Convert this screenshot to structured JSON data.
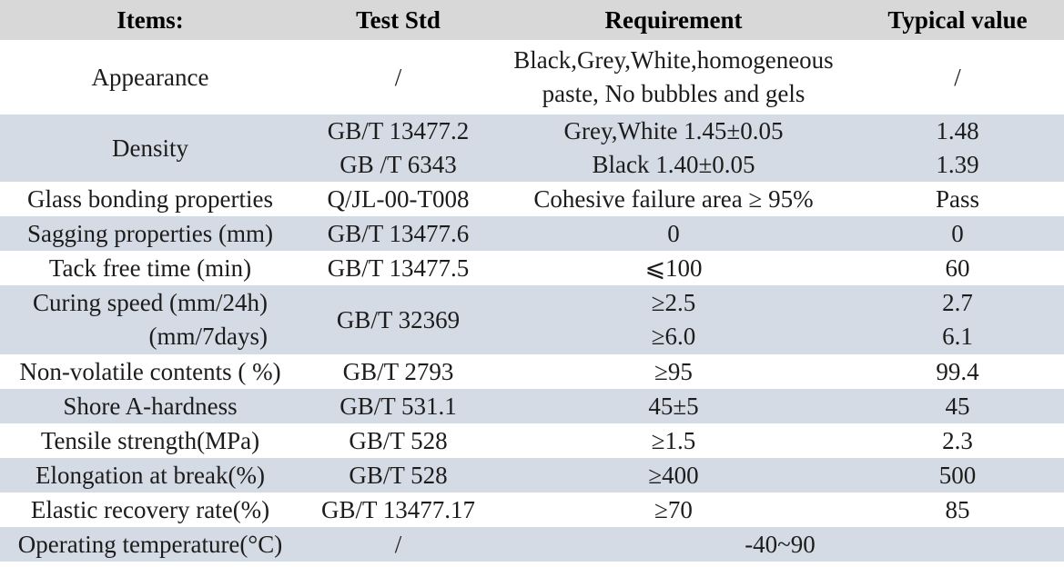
{
  "theme": {
    "header_bg": "#d8d8d8",
    "row_alt_bg": "#d5dbe4",
    "text_color": "#1c1c1c"
  },
  "table": {
    "headers": {
      "items": "Items:",
      "test_std": "Test Std",
      "requirement": "Requirement",
      "typical_value": "Typical value"
    },
    "rows": [
      {
        "item": [
          "Appearance"
        ],
        "std": [
          "/"
        ],
        "req": [
          "Black,Grey,White,homogeneous",
          "paste, No bubbles and gels"
        ],
        "typ": [
          "/"
        ]
      },
      {
        "item": [
          "Density"
        ],
        "std": [
          "GB/T 13477.2",
          "GB /T 6343"
        ],
        "req": [
          "Grey,White 1.45±0.05",
          "Black 1.40±0.05"
        ],
        "typ": [
          "1.48",
          "1.39"
        ]
      },
      {
        "item": [
          "Glass bonding properties"
        ],
        "std": [
          "Q/JL-00-T008"
        ],
        "req": [
          "Cohesive failure area ≥ 95%"
        ],
        "typ": [
          "Pass"
        ]
      },
      {
        "item": [
          "Sagging properties (mm)"
        ],
        "std": [
          "GB/T 13477.6"
        ],
        "req": [
          "0"
        ],
        "typ": [
          "0"
        ]
      },
      {
        "item": [
          "Tack free time (min)"
        ],
        "std": [
          "GB/T 13477.5"
        ],
        "req": [
          "⩽100"
        ],
        "typ": [
          "60"
        ]
      },
      {
        "item": [
          "Curing speed (mm/24h)",
          "(mm/7days)"
        ],
        "std": [
          "GB/T 32369"
        ],
        "req": [
          "≥2.5",
          "≥6.0"
        ],
        "typ": [
          "2.7",
          "6.1"
        ]
      },
      {
        "item": [
          "Non-volatile contents ( %)"
        ],
        "std": [
          "GB/T 2793"
        ],
        "req": [
          "≥95"
        ],
        "typ": [
          "99.4"
        ]
      },
      {
        "item": [
          "Shore A-hardness"
        ],
        "std": [
          "GB/T 531.1"
        ],
        "req": [
          "45±5"
        ],
        "typ": [
          "45"
        ]
      },
      {
        "item": [
          "Tensile strength(MPa)"
        ],
        "std": [
          "GB/T 528"
        ],
        "req": [
          "≥1.5"
        ],
        "typ": [
          "2.3"
        ]
      },
      {
        "item": [
          "Elongation at break(%)"
        ],
        "std": [
          "GB/T 528"
        ],
        "req": [
          "≥400"
        ],
        "typ": [
          "500"
        ]
      },
      {
        "item": [
          "Elastic recovery rate(%)"
        ],
        "std": [
          "GB/T 13477.17"
        ],
        "req": [
          "≥70"
        ],
        "typ": [
          "85"
        ]
      },
      {
        "item": [
          "Operating temperature(°C)"
        ],
        "std": [
          "/"
        ],
        "req_merged": [
          "-40~90"
        ]
      }
    ]
  }
}
